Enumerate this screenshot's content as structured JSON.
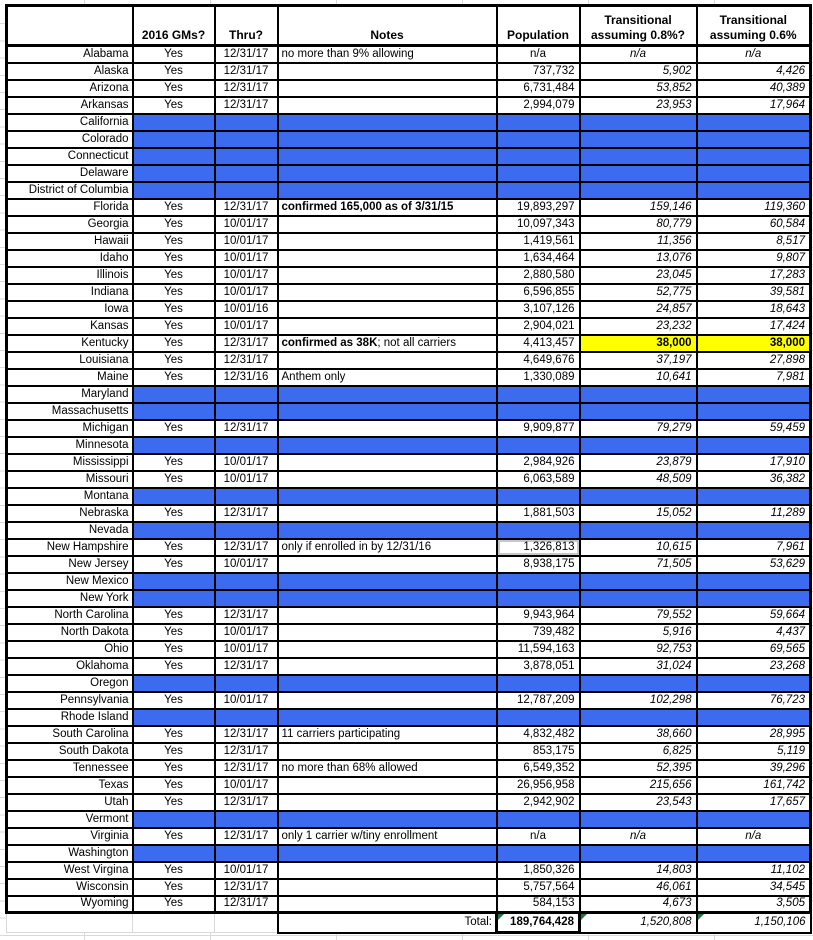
{
  "colors": {
    "blank_row_blue": "#3d6bf0",
    "highlight_yellow": "#ffff00",
    "formula_indicator_green": "#217346"
  },
  "table": {
    "columns": [
      "",
      "2016 GMs?",
      "Thru?",
      "Notes",
      "Population",
      "Transitional assuming 0.8%?",
      "Transitional assuming 0.6%"
    ],
    "rows": [
      {
        "state": "Alabama",
        "gms": "Yes",
        "thru": "12/31/17",
        "note_bold": "",
        "note": "no more than 9% allowing",
        "pop": "n/a",
        "t8": "n/a",
        "t6": "n/a",
        "blank": false
      },
      {
        "state": "Alaska",
        "gms": "Yes",
        "thru": "12/31/17",
        "note_bold": "",
        "note": "",
        "pop": "737,732",
        "t8": "5,902",
        "t6": "4,426",
        "blank": false
      },
      {
        "state": "Arizona",
        "gms": "Yes",
        "thru": "12/31/17",
        "note_bold": "",
        "note": "",
        "pop": "6,731,484",
        "t8": "53,852",
        "t6": "40,389",
        "blank": false
      },
      {
        "state": "Arkansas",
        "gms": "Yes",
        "thru": "12/31/17",
        "note_bold": "",
        "note": "",
        "pop": "2,994,079",
        "t8": "23,953",
        "t6": "17,964",
        "blank": false
      },
      {
        "state": "California",
        "blank": true
      },
      {
        "state": "Colorado",
        "blank": true
      },
      {
        "state": "Connecticut",
        "blank": true
      },
      {
        "state": "Delaware",
        "blank": true
      },
      {
        "state": "District of Columbia",
        "blank": true
      },
      {
        "state": "Florida",
        "gms": "Yes",
        "thru": "12/31/17",
        "note_bold": "confirmed 165,000 as of 3/31/15",
        "note": "",
        "pop": "19,893,297",
        "t8": "159,146",
        "t6": "119,360",
        "blank": false
      },
      {
        "state": "Georgia",
        "gms": "Yes",
        "thru": "10/01/17",
        "note_bold": "",
        "note": "",
        "pop": "10,097,343",
        "t8": "80,779",
        "t6": "60,584",
        "blank": false
      },
      {
        "state": "Hawaii",
        "gms": "Yes",
        "thru": "10/01/17",
        "note_bold": "",
        "note": "",
        "pop": "1,419,561",
        "t8": "11,356",
        "t6": "8,517",
        "blank": false
      },
      {
        "state": "Idaho",
        "gms": "Yes",
        "thru": "10/01/17",
        "note_bold": "",
        "note": "",
        "pop": "1,634,464",
        "t8": "13,076",
        "t6": "9,807",
        "blank": false
      },
      {
        "state": "Illinois",
        "gms": "Yes",
        "thru": "10/01/17",
        "note_bold": "",
        "note": "",
        "pop": "2,880,580",
        "t8": "23,045",
        "t6": "17,283",
        "blank": false
      },
      {
        "state": "Indiana",
        "gms": "Yes",
        "thru": "10/01/17",
        "note_bold": "",
        "note": "",
        "pop": "6,596,855",
        "t8": "52,775",
        "t6": "39,581",
        "blank": false
      },
      {
        "state": "Iowa",
        "gms": "Yes",
        "thru": "10/01/16",
        "note_bold": "",
        "note": "",
        "pop": "3,107,126",
        "t8": "24,857",
        "t6": "18,643",
        "blank": false
      },
      {
        "state": "Kansas",
        "gms": "Yes",
        "thru": "10/01/17",
        "note_bold": "",
        "note": "",
        "pop": "2,904,021",
        "t8": "23,232",
        "t6": "17,424",
        "blank": false
      },
      {
        "state": "Kentucky",
        "gms": "Yes",
        "thru": "12/31/17",
        "note_bold": "confirmed as 38K",
        "note": "; not all carriers",
        "pop": "4,413,457",
        "t8": "38,000",
        "t6": "38,000",
        "blank": false,
        "highlight": true
      },
      {
        "state": "Louisiana",
        "gms": "Yes",
        "thru": "12/31/17",
        "note_bold": "",
        "note": "",
        "pop": "4,649,676",
        "t8": "37,197",
        "t6": "27,898",
        "blank": false
      },
      {
        "state": "Maine",
        "gms": "Yes",
        "thru": "12/31/16",
        "note_bold": "",
        "note": "Anthem only",
        "pop": "1,330,089",
        "t8": "10,641",
        "t6": "7,981",
        "blank": false
      },
      {
        "state": "Maryland",
        "blank": true
      },
      {
        "state": "Massachusetts",
        "blank": true
      },
      {
        "state": "Michigan",
        "gms": "Yes",
        "thru": "12/31/17",
        "note_bold": "",
        "note": "",
        "pop": "9,909,877",
        "t8": "79,279",
        "t6": "59,459",
        "blank": false
      },
      {
        "state": "Minnesota",
        "blank": true
      },
      {
        "state": "Mississippi",
        "gms": "Yes",
        "thru": "10/01/17",
        "note_bold": "",
        "note": "",
        "pop": "2,984,926",
        "t8": "23,879",
        "t6": "17,910",
        "blank": false
      },
      {
        "state": "Missouri",
        "gms": "Yes",
        "thru": "10/01/17",
        "note_bold": "",
        "note": "",
        "pop": "6,063,589",
        "t8": "48,509",
        "t6": "36,382",
        "blank": false
      },
      {
        "state": "Montana",
        "blank": true
      },
      {
        "state": "Nebraska",
        "gms": "Yes",
        "thru": "12/31/17",
        "note_bold": "",
        "note": "",
        "pop": "1,881,503",
        "t8": "15,052",
        "t6": "11,289",
        "blank": false
      },
      {
        "state": "Nevada",
        "blank": true
      },
      {
        "state": "New Hampshire",
        "gms": "Yes",
        "thru": "12/31/17",
        "note_bold": "",
        "note": "only if enrolled in by 12/31/16",
        "pop": "1,326,813",
        "t8": "10,615",
        "t6": "7,961",
        "blank": false,
        "selected": true
      },
      {
        "state": "New Jersey",
        "gms": "Yes",
        "thru": "10/01/17",
        "note_bold": "",
        "note": "",
        "pop": "8,938,175",
        "t8": "71,505",
        "t6": "53,629",
        "blank": false
      },
      {
        "state": "New Mexico",
        "blank": true
      },
      {
        "state": "New York",
        "blank": true
      },
      {
        "state": "North Carolina",
        "gms": "Yes",
        "thru": "12/31/17",
        "note_bold": "",
        "note": "",
        "pop": "9,943,964",
        "t8": "79,552",
        "t6": "59,664",
        "blank": false
      },
      {
        "state": "North Dakota",
        "gms": "Yes",
        "thru": "10/01/17",
        "note_bold": "",
        "note": "",
        "pop": "739,482",
        "t8": "5,916",
        "t6": "4,437",
        "blank": false
      },
      {
        "state": "Ohio",
        "gms": "Yes",
        "thru": "10/01/17",
        "note_bold": "",
        "note": "",
        "pop": "11,594,163",
        "t8": "92,753",
        "t6": "69,565",
        "blank": false
      },
      {
        "state": "Oklahoma",
        "gms": "Yes",
        "thru": "12/31/17",
        "note_bold": "",
        "note": "",
        "pop": "3,878,051",
        "t8": "31,024",
        "t6": "23,268",
        "blank": false
      },
      {
        "state": "Oregon",
        "blank": true
      },
      {
        "state": "Pennsylvania",
        "gms": "Yes",
        "thru": "10/01/17",
        "note_bold": "",
        "note": "",
        "pop": "12,787,209",
        "t8": "102,298",
        "t6": "76,723",
        "blank": false
      },
      {
        "state": "Rhode Island",
        "blank": true
      },
      {
        "state": "South Carolina",
        "gms": "Yes",
        "thru": "12/31/17",
        "note_bold": "",
        "note": "11 carriers participating",
        "pop": "4,832,482",
        "t8": "38,660",
        "t6": "28,995",
        "blank": false
      },
      {
        "state": "South Dakota",
        "gms": "Yes",
        "thru": "12/31/17",
        "note_bold": "",
        "note": "",
        "pop": "853,175",
        "t8": "6,825",
        "t6": "5,119",
        "blank": false
      },
      {
        "state": "Tennessee",
        "gms": "Yes",
        "thru": "12/31/17",
        "note_bold": "",
        "note": "no more than 68% allowed",
        "pop": "6,549,352",
        "t8": "52,395",
        "t6": "39,296",
        "blank": false
      },
      {
        "state": "Texas",
        "gms": "Yes",
        "thru": "10/01/17",
        "note_bold": "",
        "note": "",
        "pop": "26,956,958",
        "t8": "215,656",
        "t6": "161,742",
        "blank": false
      },
      {
        "state": "Utah",
        "gms": "Yes",
        "thru": "12/31/17",
        "note_bold": "",
        "note": "",
        "pop": "2,942,902",
        "t8": "23,543",
        "t6": "17,657",
        "blank": false
      },
      {
        "state": "Vermont",
        "blank": true
      },
      {
        "state": "Virginia",
        "gms": "Yes",
        "thru": "12/31/17",
        "note_bold": "",
        "note": "only 1 carrier w/tiny enrollment",
        "pop": "n/a",
        "t8": "n/a",
        "t6": "n/a",
        "blank": false
      },
      {
        "state": "Washington",
        "blank": true
      },
      {
        "state": "West Virgina",
        "gms": "Yes",
        "thru": "10/01/17",
        "note_bold": "",
        "note": "",
        "pop": "1,850,326",
        "t8": "14,803",
        "t6": "11,102",
        "blank": false
      },
      {
        "state": "Wisconsin",
        "gms": "Yes",
        "thru": "12/31/17",
        "note_bold": "",
        "note": "",
        "pop": "5,757,564",
        "t8": "46,061",
        "t6": "34,545",
        "blank": false
      },
      {
        "state": "Wyoming",
        "gms": "Yes",
        "thru": "12/31/17",
        "note_bold": "",
        "note": "",
        "pop": "584,153",
        "t8": "4,673",
        "t6": "3,505",
        "blank": false
      }
    ],
    "total": {
      "label": "Total:",
      "pop": "189,764,428",
      "t8": "1,520,808",
      "t6": "1,150,106"
    }
  }
}
